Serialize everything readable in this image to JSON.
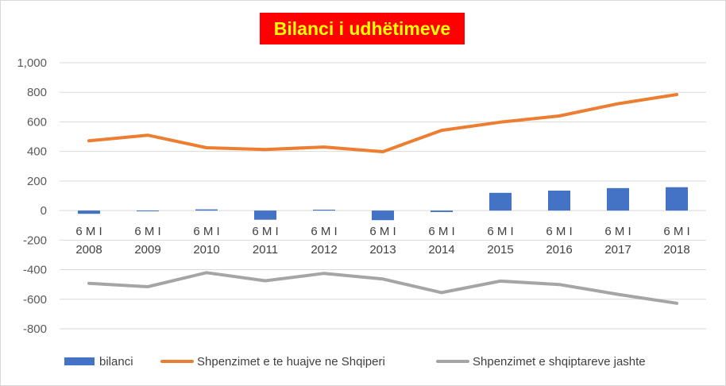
{
  "chart_data": {
    "type": "bar+line",
    "title": "Bilanci i udhëtimeve",
    "category_prefix": "6 M I",
    "categories": [
      "2008",
      "2009",
      "2010",
      "2011",
      "2012",
      "2013",
      "2014",
      "2015",
      "2016",
      "2017",
      "2018"
    ],
    "ylim": [
      -800,
      1000
    ],
    "yticks": [
      1000,
      800,
      600,
      400,
      200,
      0,
      -200,
      -400,
      -600,
      -800
    ],
    "ytick_labels": [
      "1,000",
      "800",
      "600",
      "400",
      "200",
      "0",
      "-200",
      "-400",
      "-600",
      "-800"
    ],
    "grid": true,
    "legend_position": "bottom",
    "series": [
      {
        "name": "bilanci",
        "type": "bar",
        "color": "#4472c4",
        "values": [
          -22,
          0,
          8,
          -62,
          6,
          -65,
          -10,
          120,
          135,
          152,
          158
        ]
      },
      {
        "name": "Shpenzimet e te huajve ne Shqiperi",
        "type": "line",
        "color": "#ed7d31",
        "values": [
          472,
          510,
          425,
          413,
          430,
          398,
          543,
          598,
          640,
          723,
          785
        ]
      },
      {
        "name": "Shpenzimet e shqiptareve jashte",
        "type": "line",
        "color": "#a5a5a5",
        "values": [
          -492,
          -515,
          -420,
          -475,
          -425,
          -463,
          -555,
          -477,
          -500,
          -567,
          -627
        ]
      }
    ]
  }
}
